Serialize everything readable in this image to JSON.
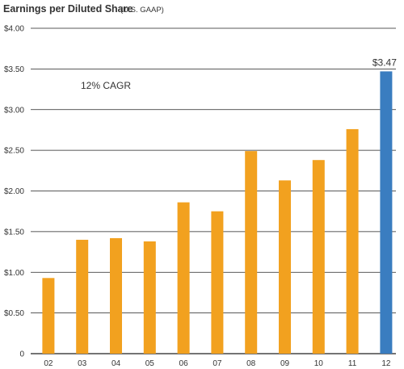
{
  "chart_data": {
    "type": "bar",
    "title": "Earnings per Diluted Share",
    "subtitle": "(U.S. GAAP)",
    "xlabel": "",
    "ylabel": "",
    "categories": [
      "02",
      "03",
      "04",
      "05",
      "06",
      "07",
      "08",
      "09",
      "10",
      "11",
      "12"
    ],
    "values": [
      0.93,
      1.4,
      1.42,
      1.38,
      1.86,
      1.75,
      2.49,
      2.13,
      2.38,
      2.76,
      3.47
    ],
    "ylim": [
      0,
      4.0
    ],
    "y_ticks": [
      "0",
      "$0.50",
      "$1.00",
      "$1.50",
      "$2.00",
      "$2.50",
      "$3.00",
      "$3.50",
      "$4.00"
    ],
    "grid": true,
    "annotation": "12% CAGR",
    "data_labels": [
      "",
      "",
      "",
      "",
      "",
      "",
      "",
      "",
      "",
      "",
      "$3.47"
    ],
    "colors": {
      "bar": "#F2A11F",
      "highlight": "#3A7DC0",
      "grid": "#222222",
      "text": "#333333"
    },
    "highlight_index": 10
  }
}
